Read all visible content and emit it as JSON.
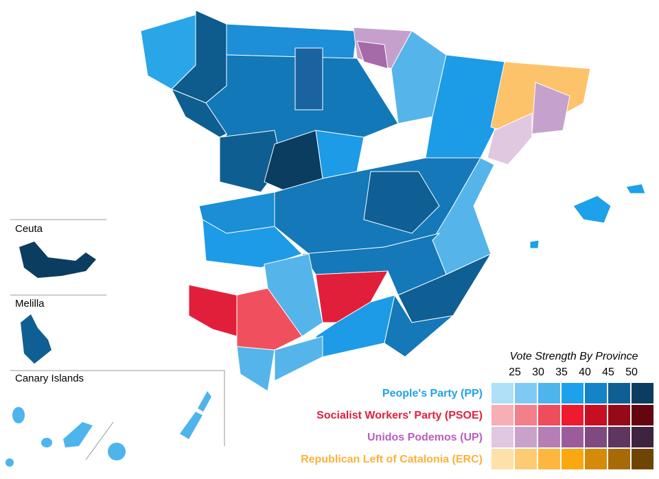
{
  "map": {
    "insets": [
      "Ceuta",
      "Melilla",
      "Canary Islands"
    ],
    "legend": {
      "title": "Vote Strength By Province",
      "ticks": [
        25,
        30,
        35,
        40,
        45,
        50
      ],
      "parties": [
        {
          "name": "People's Party (PP)",
          "color": "#22a2e9",
          "colors": [
            "#aee0f8",
            "#7fcaf3",
            "#4eb4ec",
            "#1da1ea",
            "#1583c8",
            "#0f5f94",
            "#0b3d60"
          ]
        },
        {
          "name": "Socialist Workers' Party (PSOE)",
          "color": "#e11f3c",
          "colors": [
            "#f7aeb5",
            "#f37f8a",
            "#ee4d5c",
            "#ee1b2e",
            "#c80f22",
            "#960a18",
            "#640610"
          ]
        },
        {
          "name": "Unidos Podemos (UP)",
          "color": "#b95ebf",
          "colors": [
            "#e0c8e0",
            "#c9a2c9",
            "#b57fb5",
            "#9c5c9c",
            "#7e4a80",
            "#5f365f",
            "#3e2440"
          ]
        },
        {
          "name": "Republican Left of Catalonia (ERC)",
          "color": "#fbb13c",
          "colors": [
            "#fde1a8",
            "#fdcb72",
            "#fdb73f",
            "#fba70f",
            "#d68a0a",
            "#a86a06",
            "#6e4503"
          ]
        }
      ]
    }
  }
}
